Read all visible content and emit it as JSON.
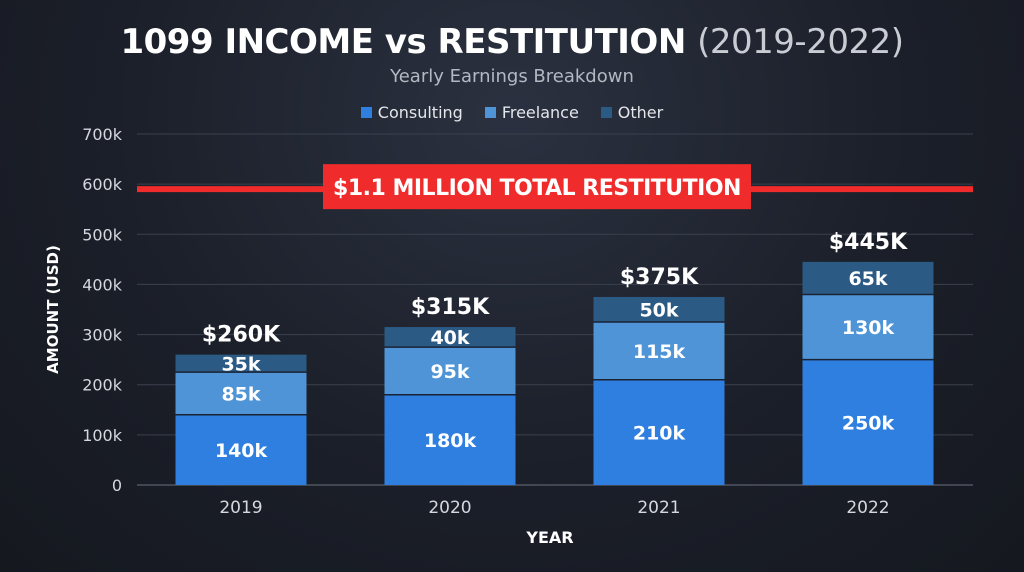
{
  "chart_data": {
    "type": "bar",
    "stacked": true,
    "title_main": "1099 INCOME vs RESTITUTION",
    "title_years": "(2019-2022)",
    "subtitle": "Yearly Earnings Breakdown",
    "xlabel": "YEAR",
    "ylabel": "AMOUNT (USD)",
    "categories": [
      "2019",
      "2020",
      "2021",
      "2022"
    ],
    "ylim": [
      0,
      700000
    ],
    "yticks": [
      0,
      100000,
      200000,
      300000,
      400000,
      500000,
      600000,
      700000
    ],
    "ytick_labels": [
      "0",
      "100k",
      "200k",
      "300k",
      "400k",
      "500k",
      "600k",
      "700k"
    ],
    "grid": true,
    "legend_position": "top-center",
    "series": [
      {
        "name": "Consulting",
        "color": "#2f7fe0",
        "values": [
          140000,
          180000,
          210000,
          250000
        ],
        "labels": [
          "140k",
          "180k",
          "210k",
          "250k"
        ]
      },
      {
        "name": "Freelance",
        "color": "#4e94d6",
        "values": [
          85000,
          95000,
          115000,
          130000
        ],
        "labels": [
          "85k",
          "95k",
          "115k",
          "130k"
        ]
      },
      {
        "name": "Other",
        "color": "#2b5a85",
        "values": [
          35000,
          40000,
          50000,
          65000
        ],
        "labels": [
          "35k",
          "40k",
          "50k",
          "65k"
        ]
      }
    ],
    "totals": [
      "$260K",
      "$315K",
      "$375K",
      "$445K"
    ],
    "reference_line": {
      "value": 590000,
      "label": "$1.1 MILLION TOTAL RESTITUTION",
      "color": "#ef2b2b"
    }
  }
}
